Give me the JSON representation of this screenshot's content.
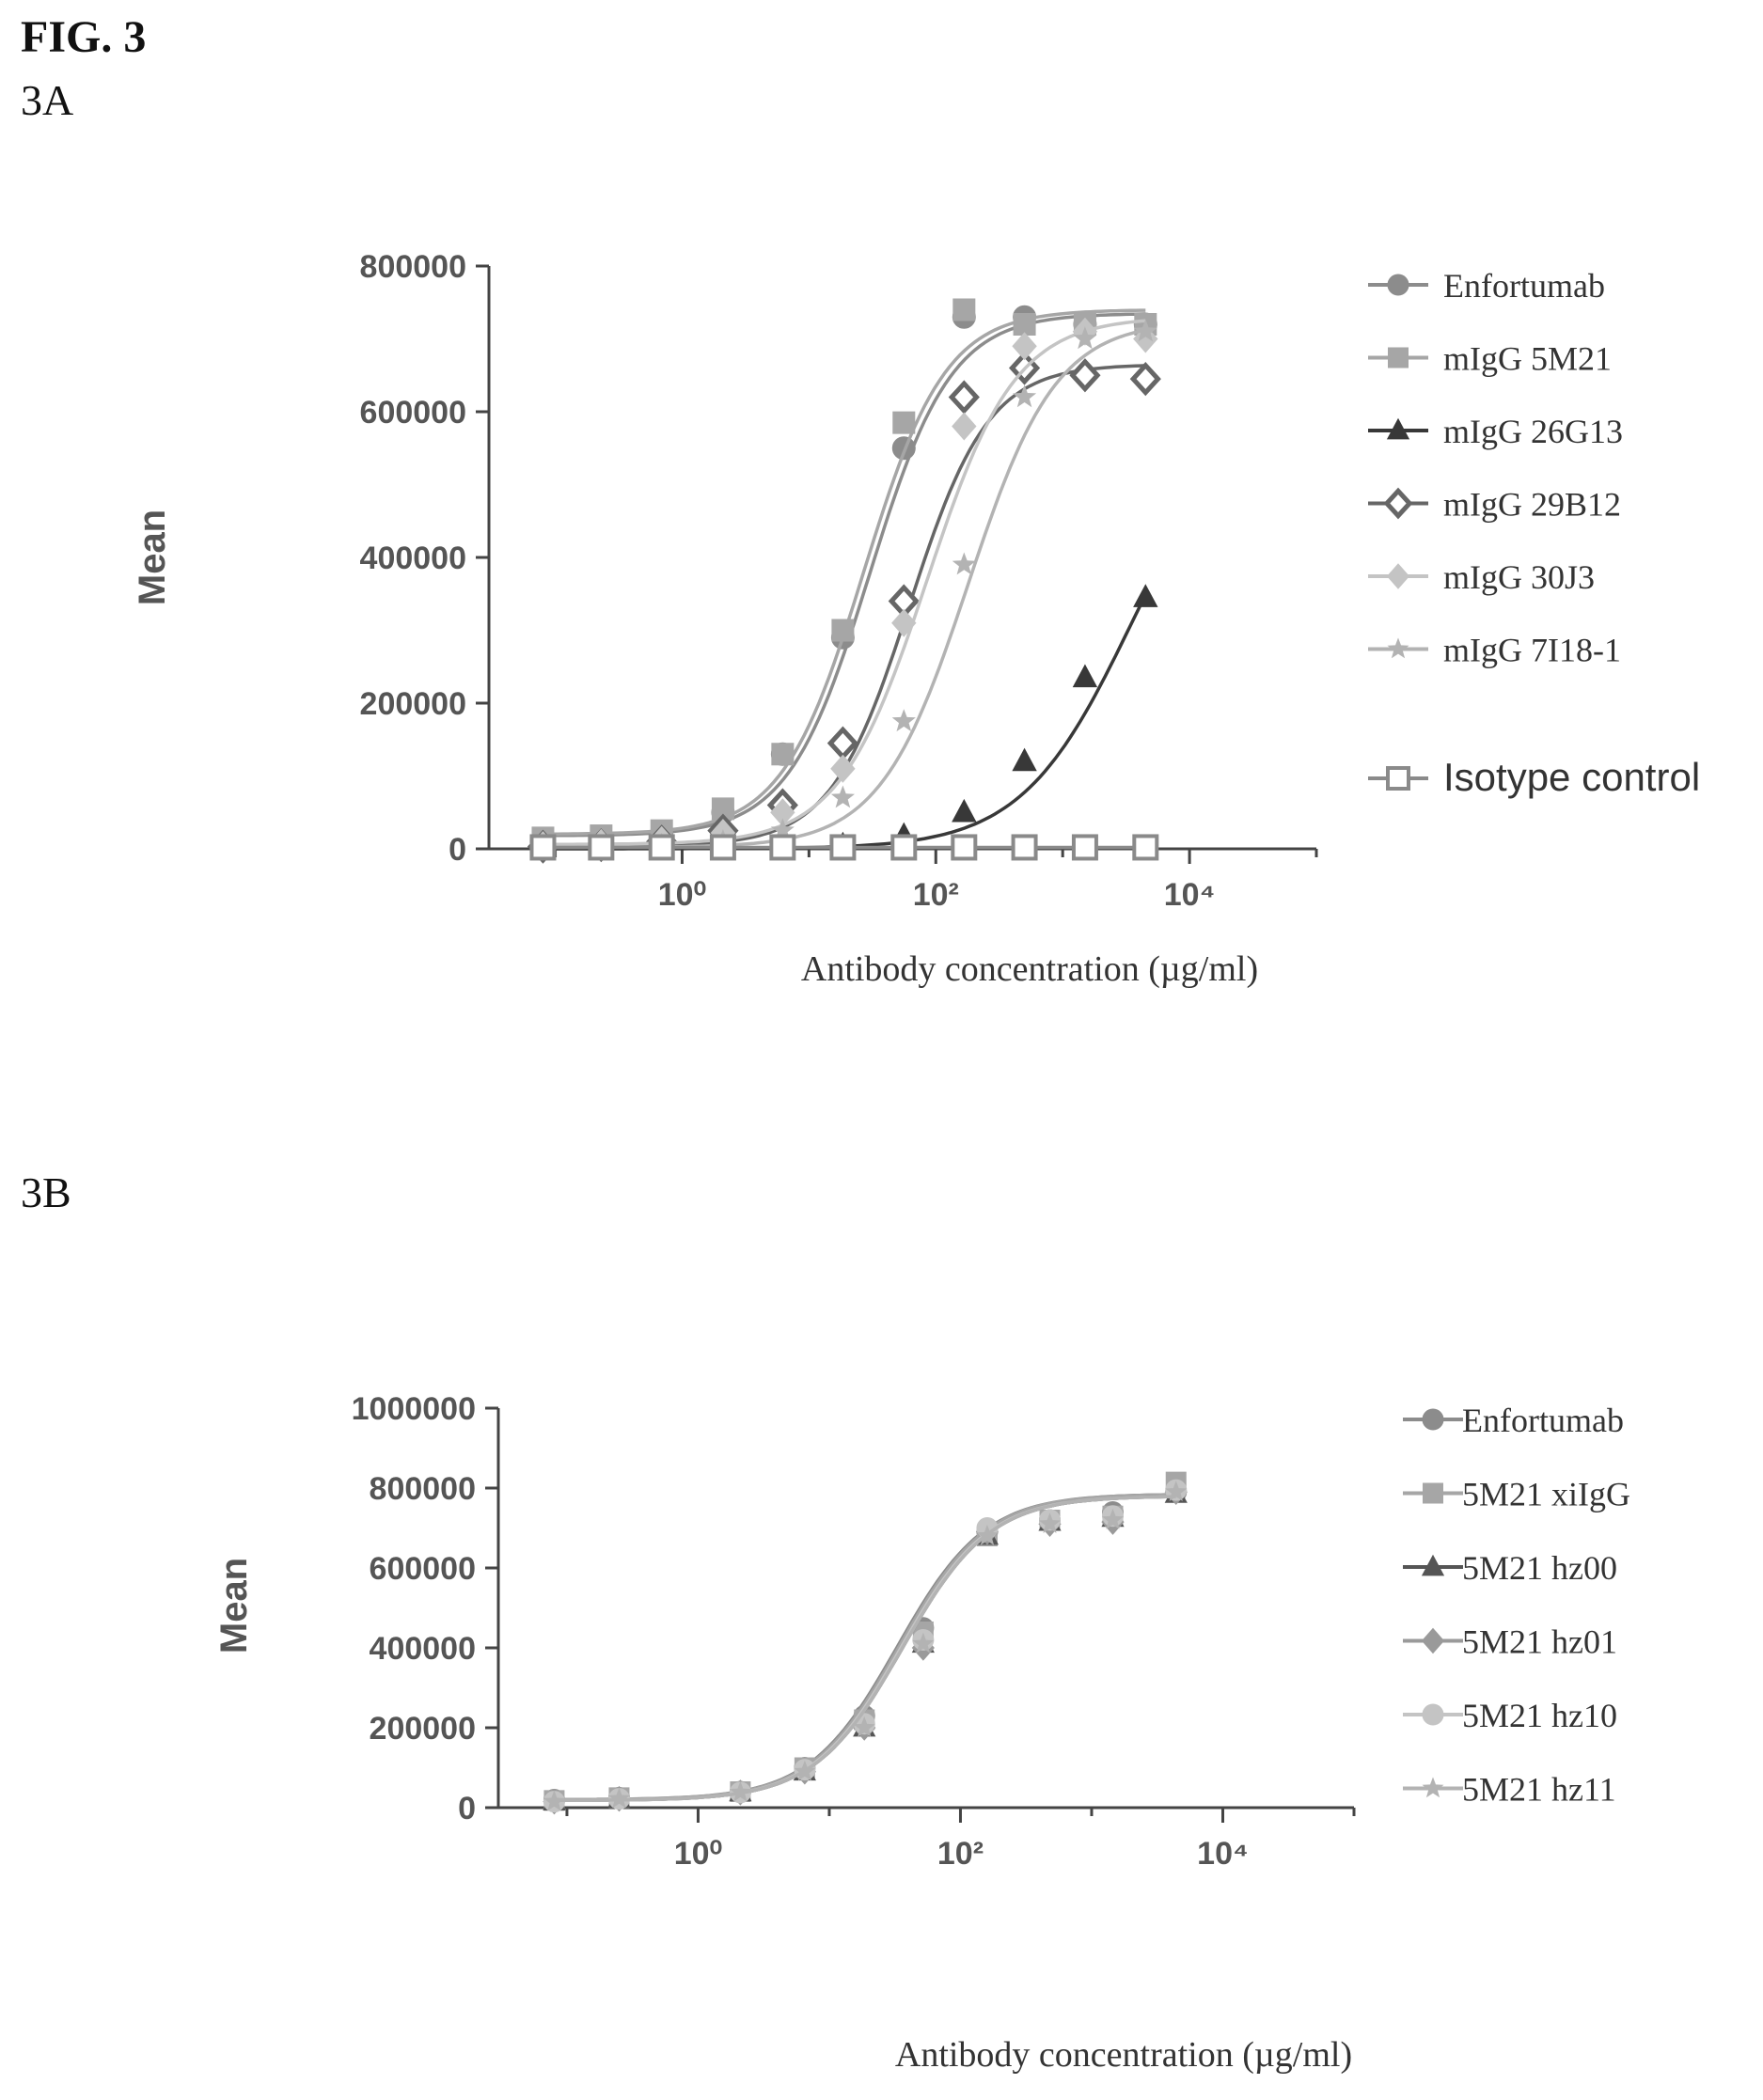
{
  "figure": {
    "title": "FIG. 3",
    "panel_a_label": "3A",
    "panel_b_label": "3B"
  },
  "chart_data": [
    {
      "type": "scatter",
      "panel": "3A",
      "xlabel": "Antibody concentration (µg/ml)",
      "ylabel": "Mean",
      "x_scale": "log10",
      "xlim": [
        0.03,
        100000
      ],
      "ylim": [
        0,
        800000
      ],
      "x_ticks": [
        1,
        100,
        10000
      ],
      "y_ticks": [
        0,
        200000,
        400000,
        600000,
        800000
      ],
      "y_tick_labels": [
        "0",
        "200000",
        "400000",
        "600000",
        "800000"
      ],
      "legend_position": "right",
      "x": [
        0.08,
        0.23,
        0.69,
        2.1,
        6.2,
        18.5,
        56,
        167,
        500,
        1500,
        4500
      ],
      "series": [
        {
          "name": "Enfortumab",
          "marker": "circle",
          "color": "#8c8c8c",
          "values": [
            8000,
            10000,
            20000,
            50000,
            130000,
            290000,
            550000,
            730000,
            730000,
            720000,
            720000
          ],
          "curve": {
            "bottom": 18000,
            "top": 735000,
            "ec50": 30,
            "hill": 1.35
          }
        },
        {
          "name": "mIgG 5M21",
          "marker": "square",
          "color": "#a6a6a6",
          "values": [
            15000,
            18000,
            25000,
            55000,
            130000,
            300000,
            585000,
            740000,
            720000,
            720000,
            720000
          ],
          "curve": {
            "bottom": 20000,
            "top": 740000,
            "ec50": 27,
            "hill": 1.35
          }
        },
        {
          "name": "mIgG 26G13",
          "marker": "triangle",
          "color": "#383838",
          "values": [
            0,
            0,
            0,
            0,
            2000,
            5000,
            18000,
            50000,
            120000,
            235000,
            345000
          ],
          "curve": {
            "bottom": 0,
            "top": 620000,
            "ec50": 3500,
            "hill": 1.0
          }
        },
        {
          "name": "mIgG 29B12",
          "marker": "diamond-open",
          "color": "#666666",
          "values": [
            3000,
            5000,
            10000,
            25000,
            60000,
            145000,
            340000,
            620000,
            660000,
            650000,
            645000
          ],
          "curve": {
            "bottom": 4000,
            "top": 665000,
            "ec50": 62,
            "hill": 1.4
          }
        },
        {
          "name": "mIgG 30J3",
          "marker": "diamond",
          "color": "#c4c4c4",
          "values": [
            5000,
            8000,
            12000,
            22000,
            50000,
            110000,
            310000,
            580000,
            690000,
            710000,
            700000
          ],
          "curve": {
            "bottom": 6000,
            "top": 730000,
            "ec50": 85,
            "hill": 1.25
          }
        },
        {
          "name": "mIgG 7I18-1",
          "marker": "star",
          "color": "#b3b3b3",
          "values": [
            2000,
            3000,
            5000,
            10000,
            25000,
            70000,
            175000,
            390000,
            620000,
            700000,
            710000
          ],
          "curve": {
            "bottom": 2000,
            "top": 725000,
            "ec50": 180,
            "hill": 1.25
          }
        },
        {
          "name": "Isotype control",
          "marker": "square-open",
          "color": "#8a8a8a",
          "values": [
            2000,
            2000,
            2000,
            2000,
            2000,
            2000,
            2000,
            2000,
            2000,
            2000,
            2000
          ],
          "curve": {
            "bottom": 2000,
            "top": 2000,
            "ec50": 10,
            "hill": 1.0
          }
        }
      ]
    },
    {
      "type": "scatter",
      "panel": "3B",
      "xlabel": "Antibody concentration (µg/ml)",
      "ylabel": "Mean",
      "x_scale": "log10",
      "xlim": [
        0.03,
        100000
      ],
      "ylim": [
        0,
        1000000
      ],
      "x_ticks": [
        1,
        100,
        10000
      ],
      "y_ticks": [
        0,
        200000,
        400000,
        600000,
        800000,
        1000000
      ],
      "y_tick_labels": [
        "0",
        "200000",
        "400000",
        "600000",
        "800000",
        "1000000"
      ],
      "legend_position": "right",
      "x": [
        0.08,
        0.25,
        2.1,
        6.5,
        18.5,
        52,
        160,
        480,
        1450,
        4400
      ],
      "series": [
        {
          "name": "Enfortumab",
          "marker": "circle",
          "color": "#8c8c8c",
          "values": [
            20000,
            25000,
            40000,
            100000,
            230000,
            450000,
            690000,
            720000,
            740000,
            790000
          ],
          "curve": {
            "bottom": 20000,
            "top": 785000,
            "ec50": 33,
            "hill": 1.3
          }
        },
        {
          "name": "5M21 xiIgG",
          "marker": "square",
          "color": "#a6a6a6",
          "values": [
            18000,
            25000,
            40000,
            100000,
            220000,
            440000,
            680000,
            720000,
            730000,
            815000
          ],
          "curve": {
            "bottom": 20000,
            "top": 785000,
            "ec50": 34,
            "hill": 1.3
          }
        },
        {
          "name": "5M21 hz00",
          "marker": "triangle",
          "color": "#555555",
          "values": [
            15000,
            22000,
            38000,
            90000,
            200000,
            410000,
            680000,
            715000,
            725000,
            785000
          ],
          "curve": {
            "bottom": 18000,
            "top": 780000,
            "ec50": 36,
            "hill": 1.3
          }
        },
        {
          "name": "5M21 hz01",
          "marker": "diamond",
          "color": "#9a9a9a",
          "values": [
            15000,
            22000,
            38000,
            90000,
            200000,
            400000,
            690000,
            710000,
            715000,
            790000
          ],
          "curve": {
            "bottom": 18000,
            "top": 780000,
            "ec50": 36,
            "hill": 1.3
          }
        },
        {
          "name": "5M21 hz10",
          "marker": "circle",
          "color": "#c4c4c4",
          "values": [
            15000,
            22000,
            38000,
            95000,
            210000,
            420000,
            700000,
            720000,
            730000,
            795000
          ],
          "curve": {
            "bottom": 18000,
            "top": 780000,
            "ec50": 35,
            "hill": 1.3
          }
        },
        {
          "name": "5M21 hz11",
          "marker": "star",
          "color": "#b3b3b3",
          "values": [
            15000,
            22000,
            38000,
            90000,
            200000,
            410000,
            680000,
            710000,
            720000,
            790000
          ],
          "curve": {
            "bottom": 18000,
            "top": 780000,
            "ec50": 36,
            "hill": 1.3
          }
        }
      ]
    }
  ]
}
